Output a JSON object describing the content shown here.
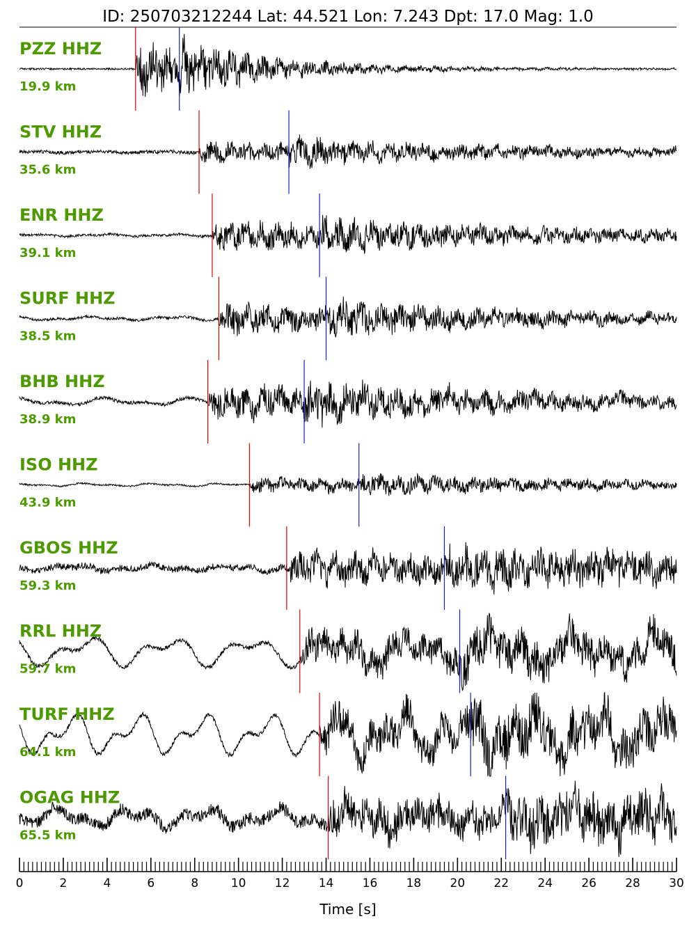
{
  "title": "ID: 250703212244 Lat:  44.521 Lon:   7.243 Dpt:    17.0 Mag:   1.0",
  "colors": {
    "label": "#4c9a00",
    "p_pick": "#e00000",
    "s_pick": "#1020d0",
    "trace": "#000000"
  },
  "chart_data": {
    "type": "line",
    "title": "ID: 250703212244 Lat:  44.521 Lon:   7.243 Dpt:    17.0 Mag:   1.0",
    "xlabel": "Time [s]",
    "ylabel": "",
    "xlim": [
      0,
      30
    ],
    "xticks": [
      "0",
      "2",
      "4",
      "6",
      "8",
      "10",
      "12",
      "14",
      "16",
      "18",
      "20",
      "22",
      "24",
      "26",
      "28",
      "30"
    ],
    "traces": [
      {
        "station": "PZZ HHZ",
        "distance": "19.9 km",
        "p_time": 5.3,
        "s_time": 7.3,
        "pre_amp": 0.02,
        "low_amp": 0.0,
        "post_amp": 0.55,
        "decay": 0.18,
        "seed": 11
      },
      {
        "station": "STV HHZ",
        "distance": "35.6 km",
        "p_time": 8.2,
        "s_time": 12.3,
        "pre_amp": 0.04,
        "low_amp": 0.02,
        "post_amp": 0.22,
        "decay": 0.05,
        "seed": 23
      },
      {
        "station": "ENR HHZ",
        "distance": "39.1 km",
        "p_time": 8.8,
        "s_time": 13.7,
        "pre_amp": 0.03,
        "low_amp": 0.03,
        "post_amp": 0.3,
        "decay": 0.05,
        "seed": 37
      },
      {
        "station": "SURF HHZ",
        "distance": "38.5 km",
        "p_time": 9.1,
        "s_time": 14.0,
        "pre_amp": 0.03,
        "low_amp": 0.05,
        "post_amp": 0.32,
        "decay": 0.06,
        "seed": 41
      },
      {
        "station": "BHB HHZ",
        "distance": "38.9 km",
        "p_time": 8.6,
        "s_time": 13.0,
        "pre_amp": 0.04,
        "low_amp": 0.1,
        "post_amp": 0.34,
        "decay": 0.05,
        "seed": 53
      },
      {
        "station": "ISO HHZ",
        "distance": "43.9 km",
        "p_time": 10.5,
        "s_time": 15.5,
        "pre_amp": 0.02,
        "low_amp": 0.04,
        "post_amp": 0.16,
        "decay": 0.04,
        "seed": 67
      },
      {
        "station": "GBOS HHZ",
        "distance": "59.3 km",
        "p_time": 12.2,
        "s_time": 19.4,
        "pre_amp": 0.08,
        "low_amp": 0.08,
        "post_amp": 0.32,
        "decay": 0.02,
        "seed": 71
      },
      {
        "station": "RRL HHZ",
        "distance": "59.7 km",
        "p_time": 12.8,
        "s_time": 20.1,
        "pre_amp": 0.05,
        "low_amp": 0.4,
        "post_amp": 0.36,
        "decay": 0.02,
        "seed": 83
      },
      {
        "station": "TURF HHZ",
        "distance": "64.1 km",
        "p_time": 13.7,
        "s_time": 20.6,
        "pre_amp": 0.05,
        "low_amp": 0.55,
        "post_amp": 0.4,
        "decay": 0.01,
        "seed": 97
      },
      {
        "station": "OGAG HHZ",
        "distance": "65.5 km",
        "p_time": 14.1,
        "s_time": 22.2,
        "pre_amp": 0.15,
        "low_amp": 0.25,
        "post_amp": 0.35,
        "decay": 0.01,
        "seed": 101
      }
    ]
  }
}
